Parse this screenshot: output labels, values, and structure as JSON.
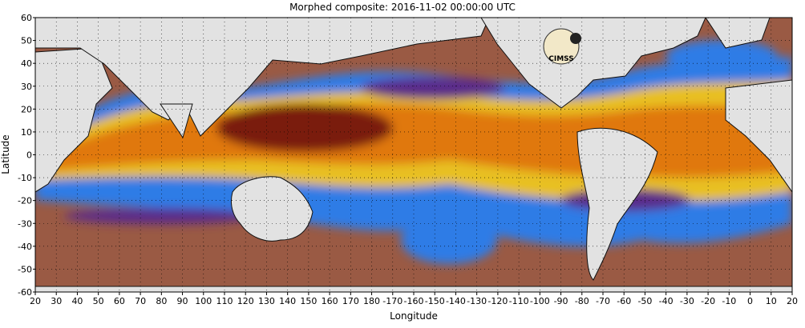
{
  "title": "Morphed composite: 2016-11-02 00:00:00 UTC",
  "axes": {
    "xlabel": "Longitude",
    "ylabel": "Latitude",
    "x_ticks": [
      "20",
      "30",
      "40",
      "50",
      "60",
      "70",
      "80",
      "90",
      "100",
      "110",
      "120",
      "130",
      "140",
      "150",
      "160",
      "170",
      "180",
      "-170",
      "-160",
      "-150",
      "-140",
      "-130",
      "-120",
      "-110",
      "-100",
      "-90",
      "-80",
      "-70",
      "-60",
      "-50",
      "-40",
      "-30",
      "-20",
      "-10",
      "0",
      "10",
      "20"
    ],
    "y_ticks": [
      "60",
      "50",
      "40",
      "30",
      "20",
      "10",
      "0",
      "-10",
      "-20",
      "-30",
      "-40",
      "-50",
      "-60"
    ],
    "lat_range": [
      -60,
      60
    ],
    "grid": "dotted"
  },
  "logo": {
    "text": "CIMSS"
  },
  "colors": {
    "background": "#9a5a44",
    "land": "#e2e2e2",
    "coast": "#111111",
    "moisture_high": "#7a1a08",
    "moisture_mid": "#e0780e",
    "moisture_low": "#2f7be6",
    "moisture_min": "#5a2a8a"
  }
}
